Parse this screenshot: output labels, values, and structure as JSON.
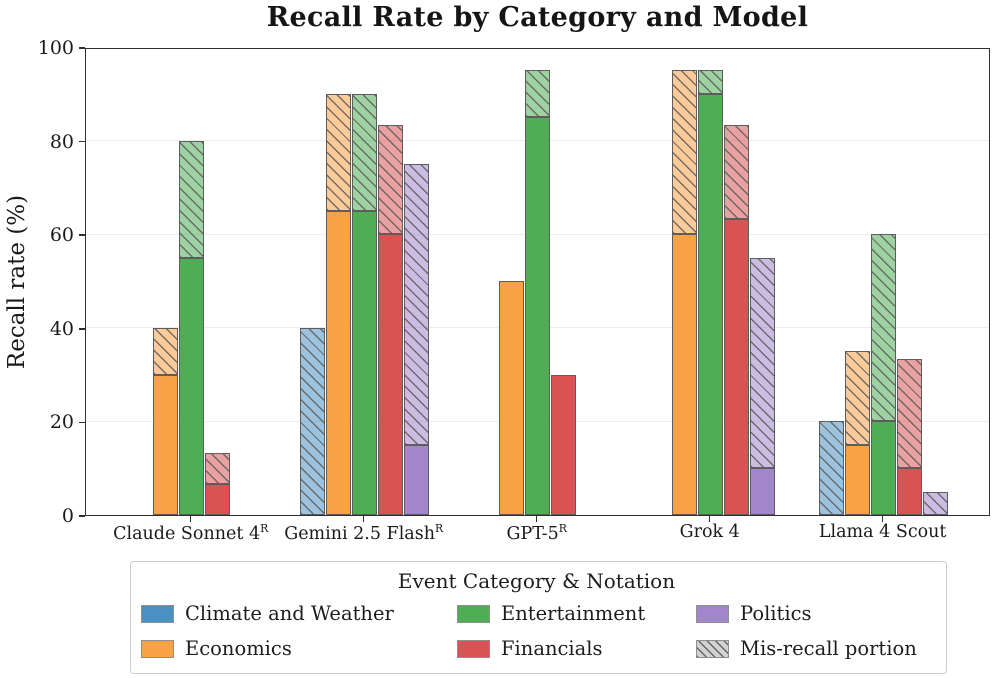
{
  "chart_data": {
    "type": "bar",
    "title": "Recall Rate by Category and Model",
    "ylabel": "Recall rate (%)",
    "xlabel": "",
    "ylim": [
      0,
      100
    ],
    "yticks": [
      0,
      20,
      40,
      60,
      80,
      100
    ],
    "grid": "horizontal",
    "background": "#ffffff",
    "models": [
      {
        "name": "Claude Sonnet 4",
        "sup": "R"
      },
      {
        "name": "Gemini 2.5 Flash",
        "sup": "R"
      },
      {
        "name": "GPT-5",
        "sup": "R"
      },
      {
        "name": "Grok 4",
        "sup": ""
      },
      {
        "name": "Llama 4 Scout",
        "sup": ""
      }
    ],
    "series": [
      {
        "name": "Climate and Weather",
        "color": "#4a90c2",
        "recall": [
          null,
          0,
          null,
          null,
          0
        ],
        "total_with_misrecall": [
          null,
          40,
          null,
          null,
          20
        ]
      },
      {
        "name": "Economics",
        "color": "#f9a145",
        "recall": [
          30,
          65,
          50,
          60,
          15
        ],
        "total_with_misrecall": [
          40,
          90,
          50,
          95,
          35
        ]
      },
      {
        "name": "Entertainment",
        "color": "#4fad55",
        "recall": [
          55,
          65,
          85,
          90,
          20
        ],
        "total_with_misrecall": [
          80,
          90,
          95,
          95,
          60
        ]
      },
      {
        "name": "Financials",
        "color": "#d95354",
        "recall": [
          6.7,
          60,
          30,
          63.3,
          10
        ],
        "total_with_misrecall": [
          13.3,
          83.3,
          30,
          83.3,
          33.3
        ]
      },
      {
        "name": "Politics",
        "color": "#a186c9",
        "recall": [
          null,
          15,
          null,
          10,
          0
        ],
        "total_with_misrecall": [
          null,
          75,
          null,
          55,
          5
        ]
      }
    ],
    "legend": {
      "title": "Event Category & Notation",
      "position": "below",
      "items": [
        {
          "label": "Climate and Weather",
          "color": "#4a90c2",
          "hatch": false
        },
        {
          "label": "Economics",
          "color": "#f9a145",
          "hatch": false
        },
        {
          "label": "Entertainment",
          "color": "#4fad55",
          "hatch": false
        },
        {
          "label": "Financials",
          "color": "#d95354",
          "hatch": false
        },
        {
          "label": "Politics",
          "color": "#a186c9",
          "hatch": false
        },
        {
          "label": "Mis-recall portion",
          "color": "#d2d2d2",
          "hatch": true
        }
      ]
    }
  }
}
